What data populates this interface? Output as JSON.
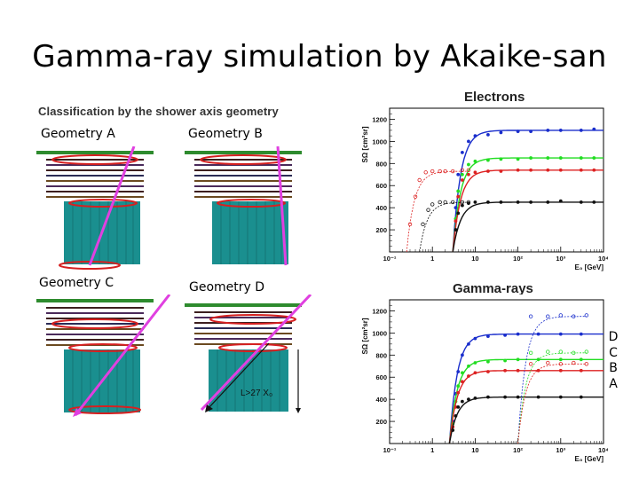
{
  "slide": {
    "title": "Gamma-ray simulation by Akaike-san"
  },
  "classification": {
    "heading": "Classification by the shower axis geometry",
    "geometries": [
      {
        "id": "A",
        "label": "Geometry A"
      },
      {
        "id": "B",
        "label": "Geometry B"
      },
      {
        "id": "C",
        "label": "Geometry C"
      },
      {
        "id": "D",
        "label": "Geometry D",
        "annotation": "L>27 X₀"
      }
    ]
  },
  "legend_letters": [
    "D",
    "C",
    "B",
    "A"
  ],
  "colors": {
    "calorimeter": "#1a8f8f",
    "tracker_layers": [
      "#3d1f1f",
      "#4a2a5a",
      "#6b4a20",
      "#2b2b55"
    ],
    "top_bar": "#2e8b2e",
    "ring": "#d62020",
    "shower_axis": "#e040e0",
    "series_D": "#1a2ecc",
    "series_C": "#22dd22",
    "series_B": "#dd2222",
    "series_A": "#111111"
  },
  "chart_data": [
    {
      "type": "line",
      "title": "Electrons",
      "xlabel": "E₀ [GeV]",
      "ylabel": "SΩ [cm²sr]",
      "xscale": "log",
      "xlim": [
        0.1,
        10000
      ],
      "ylim": [
        0,
        1300
      ],
      "xticks": [
        "10⁻¹",
        "1",
        "10",
        "10²",
        "10³",
        "10⁴"
      ],
      "yticks": [
        200,
        400,
        600,
        800,
        1000,
        1200
      ],
      "series": [
        {
          "name": "D",
          "color": "#1a2ecc",
          "plateau": 1100,
          "x0": 3.0,
          "x": [
            3.5,
            4,
            5,
            7,
            10,
            20,
            40,
            100,
            200,
            500,
            1000,
            3000,
            6000
          ],
          "y": [
            400,
            700,
            900,
            1000,
            1050,
            1060,
            1080,
            1090,
            1090,
            1100,
            1100,
            1100,
            1110
          ]
        },
        {
          "name": "C",
          "color": "#22dd22",
          "plateau": 850,
          "x0": 3.0,
          "x": [
            3.5,
            4,
            5,
            7,
            10,
            20,
            40,
            100,
            200,
            500,
            1000,
            3000,
            6000
          ],
          "y": [
            300,
            550,
            700,
            790,
            820,
            830,
            840,
            840,
            850,
            850,
            850,
            850,
            850
          ]
        },
        {
          "name": "B",
          "color": "#dd2222",
          "plateau": 740,
          "x0": 3.0,
          "x": [
            3.5,
            4,
            5,
            7,
            10,
            20,
            40,
            100,
            200,
            500,
            1000,
            3000,
            6000
          ],
          "y": [
            280,
            500,
            650,
            700,
            720,
            730,
            730,
            740,
            740,
            740,
            740,
            740,
            740
          ]
        },
        {
          "name": "A",
          "color": "#111111",
          "plateau": 450,
          "x0": 3.0,
          "x": [
            3.5,
            4,
            5,
            7,
            10,
            20,
            40,
            100,
            200,
            500,
            1000,
            3000,
            6000
          ],
          "y": [
            200,
            350,
            420,
            440,
            450,
            450,
            450,
            450,
            450,
            450,
            460,
            450,
            450
          ]
        },
        {
          "name": "B-open",
          "color": "#dd2222",
          "plateau": 730,
          "x0": 0.25,
          "open": true,
          "x": [
            0.3,
            0.4,
            0.5,
            0.7,
            1,
            1.5,
            2,
            3,
            5,
            7
          ],
          "y": [
            250,
            500,
            650,
            720,
            730,
            730,
            730,
            730,
            740,
            740
          ]
        },
        {
          "name": "A-open",
          "color": "#111111",
          "plateau": 450,
          "x0": 0.5,
          "open": true,
          "x": [
            0.6,
            0.8,
            1,
            1.5,
            2,
            3,
            5,
            7
          ],
          "y": [
            250,
            380,
            430,
            450,
            450,
            450,
            450,
            450
          ]
        }
      ]
    },
    {
      "type": "line",
      "title": "Gamma-rays",
      "xlabel": "E₀ [GeV]",
      "ylabel": "SΩ [cm²sr]",
      "xscale": "log",
      "xlim": [
        0.1,
        10000
      ],
      "ylim": [
        0,
        1300
      ],
      "xticks": [
        "10⁻¹",
        "1",
        "10",
        "10²",
        "10³",
        "10⁴"
      ],
      "yticks": [
        200,
        400,
        600,
        800,
        1000,
        1200
      ],
      "series": [
        {
          "name": "D",
          "color": "#1a2ecc",
          "plateau": 990,
          "x0": 2.5,
          "x": [
            3,
            3.5,
            4,
            5,
            7,
            10,
            20,
            50,
            100,
            300,
            1000,
            3000
          ],
          "y": [
            200,
            450,
            650,
            800,
            900,
            950,
            970,
            980,
            990,
            990,
            990,
            990
          ]
        },
        {
          "name": "C",
          "color": "#22dd22",
          "plateau": 760,
          "x0": 2.5,
          "x": [
            3,
            3.5,
            4,
            5,
            7,
            10,
            20,
            50,
            100,
            300,
            1000,
            3000
          ],
          "y": [
            180,
            380,
            520,
            640,
            700,
            730,
            740,
            750,
            760,
            760,
            760,
            760
          ]
        },
        {
          "name": "B",
          "color": "#dd2222",
          "plateau": 660,
          "x0": 2.5,
          "x": [
            3,
            3.5,
            4,
            5,
            7,
            10,
            20,
            50,
            100,
            300,
            1000,
            3000
          ],
          "y": [
            150,
            330,
            460,
            560,
            610,
            640,
            650,
            660,
            660,
            660,
            660,
            660
          ]
        },
        {
          "name": "A",
          "color": "#111111",
          "plateau": 420,
          "x0": 2.5,
          "x": [
            3,
            3.5,
            4,
            5,
            7,
            10,
            20,
            50,
            100,
            300,
            1000,
            3000
          ],
          "y": [
            120,
            250,
            330,
            380,
            400,
            410,
            420,
            420,
            420,
            420,
            420,
            420
          ]
        },
        {
          "name": "D-open",
          "color": "#1a2ecc",
          "plateau": 1150,
          "x0": 100,
          "open": true,
          "x": [
            200,
            500,
            1000,
            2000,
            4000
          ],
          "y": [
            1150,
            1150,
            1160,
            1150,
            1160
          ]
        },
        {
          "name": "C-open",
          "color": "#22dd22",
          "plateau": 820,
          "x0": 100,
          "open": true,
          "x": [
            200,
            500,
            1000,
            2000,
            4000
          ],
          "y": [
            820,
            830,
            830,
            820,
            830
          ]
        },
        {
          "name": "B-open",
          "color": "#dd2222",
          "plateau": 720,
          "x0": 100,
          "open": true,
          "x": [
            200,
            500,
            1000,
            2000,
            4000
          ],
          "y": [
            720,
            730,
            720,
            730,
            720
          ]
        }
      ]
    }
  ]
}
